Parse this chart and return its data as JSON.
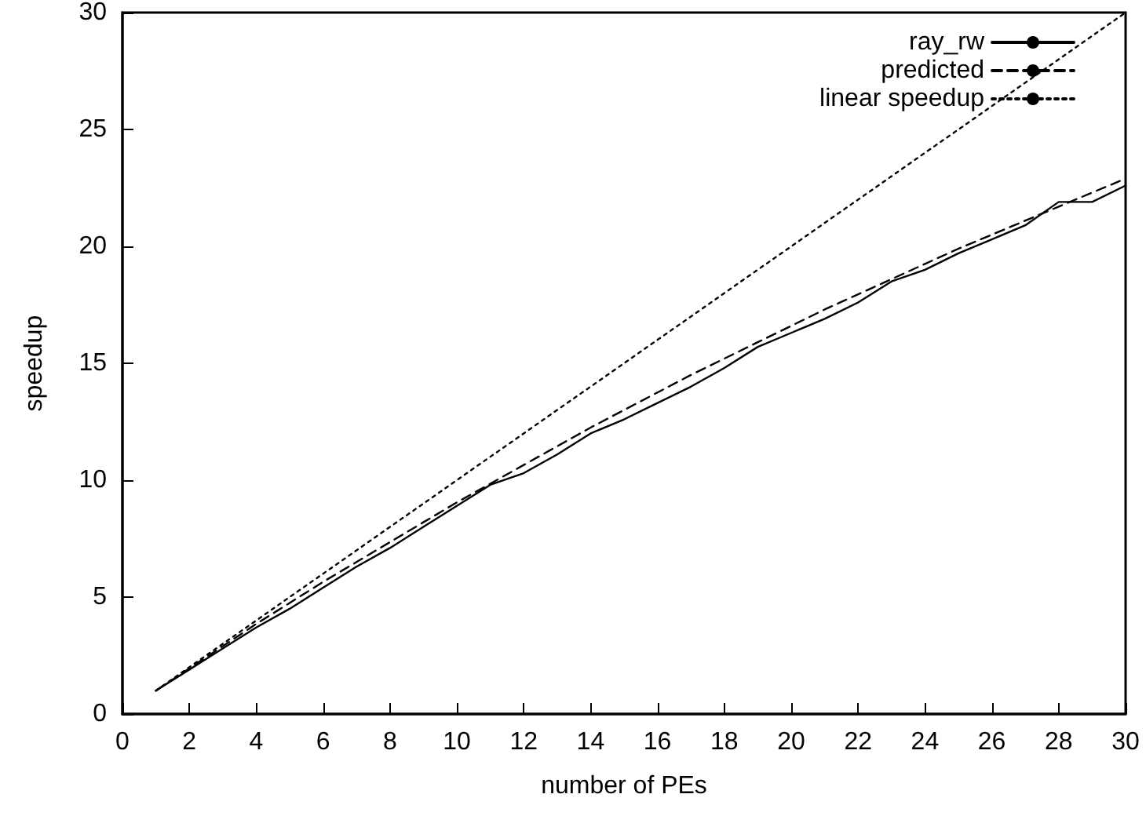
{
  "chart_data": {
    "type": "line",
    "xlabel": "number of PEs",
    "ylabel": "speedup",
    "xlim": [
      0,
      30
    ],
    "xticks": [
      0,
      2,
      4,
      6,
      8,
      10,
      12,
      14,
      16,
      18,
      20,
      22,
      24,
      26,
      28,
      30
    ],
    "ylim": [
      0,
      30
    ],
    "yticks": [
      0,
      5,
      10,
      15,
      20,
      25,
      30
    ],
    "grid": false,
    "legend": "top right",
    "marker": "none",
    "series": [
      {
        "name": "ray_rw",
        "color": "#000000",
        "line_style": "solid",
        "x": [
          1,
          2,
          3,
          4,
          5,
          6,
          7,
          8,
          9,
          10,
          11,
          12,
          13,
          14,
          15,
          16,
          17,
          18,
          19,
          20,
          21,
          22,
          23,
          24,
          25,
          26,
          27,
          28,
          29,
          30
        ],
        "values": [
          1,
          1.9,
          2.8,
          3.7,
          4.5,
          5.4,
          6.3,
          7.1,
          8.0,
          8.9,
          9.8,
          10.3,
          11.1,
          12.0,
          12.6,
          13.3,
          14.0,
          14.8,
          15.7,
          16.3,
          16.9,
          17.6,
          18.5,
          19.0,
          19.7,
          20.3,
          20.9,
          21.9,
          21.9,
          22.6
        ]
      },
      {
        "name": "predicted",
        "color": "#000000",
        "line_style": "dashed",
        "x": [
          1,
          2,
          3,
          4,
          5,
          6,
          7,
          8,
          9,
          10,
          11,
          12,
          13,
          14,
          15,
          16,
          17,
          18,
          19,
          20,
          21,
          22,
          23,
          24,
          25,
          26,
          27,
          28,
          29,
          30
        ],
        "values": [
          1,
          1.95,
          2.9,
          3.85,
          4.75,
          5.65,
          6.5,
          7.35,
          8.2,
          9.05,
          9.85,
          10.65,
          11.45,
          12.25,
          13.0,
          13.75,
          14.5,
          15.2,
          15.9,
          16.6,
          17.3,
          17.95,
          18.6,
          19.25,
          19.9,
          20.5,
          21.1,
          21.7,
          22.3,
          22.9
        ]
      },
      {
        "name": "linear speedup",
        "color": "#000000",
        "line_style": "dotted",
        "x": [
          1,
          30
        ],
        "values": [
          1,
          30
        ]
      }
    ]
  }
}
